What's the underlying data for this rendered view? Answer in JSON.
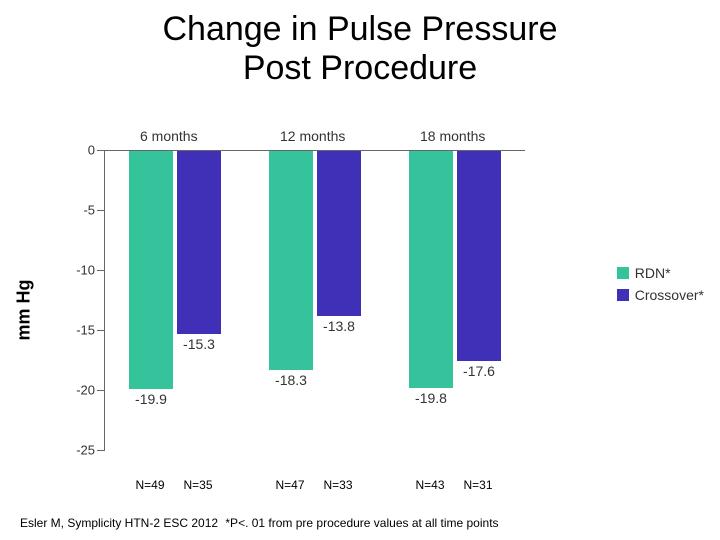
{
  "title_line1": "Change in Pulse Pressure",
  "title_line2": "Post Procedure",
  "chart": {
    "type": "bar",
    "ylabel": "mm Hg",
    "ylim_min": -25,
    "ylim_max": 0,
    "ytick_step": -5,
    "axis_color": "#666666",
    "tick_font_size": 13,
    "label_font_size": 18,
    "value_font_size": 14,
    "categories": [
      "6 months",
      "12 months",
      "18 months"
    ],
    "series": [
      {
        "name": "RDN*",
        "color": "#34c39b",
        "values": [
          -19.9,
          -18.3,
          -19.8
        ]
      },
      {
        "name": "Crossover*",
        "color": "#4030b8",
        "values": [
          -15.3,
          -13.8,
          -17.6
        ]
      }
    ],
    "n_labels": [
      {
        "group": 0,
        "bar": 0,
        "text": "N=49"
      },
      {
        "group": 0,
        "bar": 1,
        "text": "N=35"
      },
      {
        "group": 1,
        "bar": 0,
        "text": "N=47"
      },
      {
        "group": 1,
        "bar": 1,
        "text": "N=33"
      },
      {
        "group": 2,
        "bar": 0,
        "text": "N=43"
      },
      {
        "group": 2,
        "bar": 1,
        "text": "N=31"
      }
    ],
    "legend_position": "right"
  },
  "footer_source": "Esler M, Symplicity HTN-2 ESC 2012",
  "footer_note": "*P<. 01 from pre procedure values at all time points"
}
